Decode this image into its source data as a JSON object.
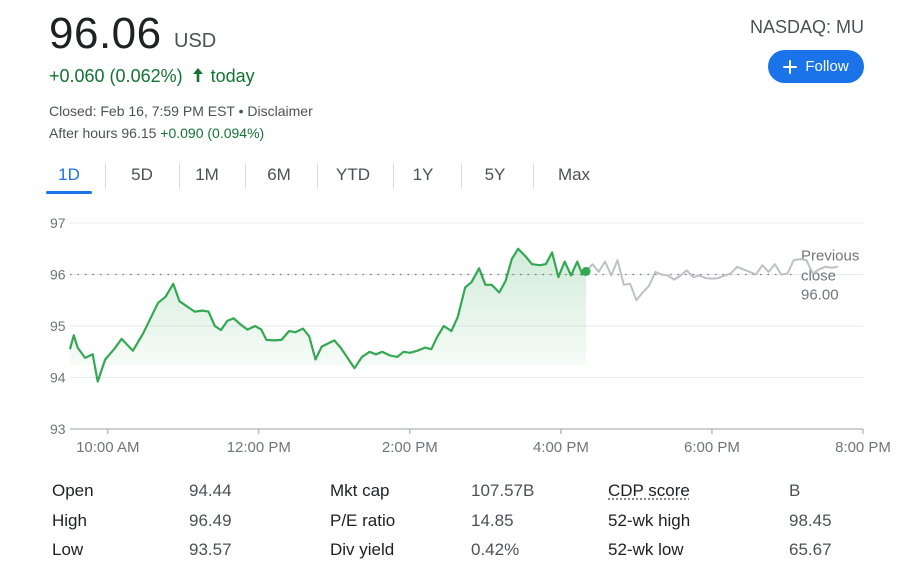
{
  "quote": {
    "price": "96.06",
    "currency": "USD",
    "change": "+0.060 (0.062%)",
    "change_period": "today",
    "closed_text": "Closed: Feb 16, 7:59 PM EST • Disclaimer",
    "after_hours_label": "After hours 96.15",
    "after_hours_change": "+0.090 (0.094%)",
    "ticker": "NASDAQ: MU",
    "follow_label": "Follow",
    "arrow_icon": "arrow-up-icon",
    "plus_icon": "plus-icon"
  },
  "tabs": [
    "1D",
    "5D",
    "1M",
    "6M",
    "YTD",
    "1Y",
    "5Y",
    "Max"
  ],
  "active_tab": "1D",
  "chart_data": {
    "type": "line",
    "ylim": [
      93,
      97
    ],
    "yticks": [
      "97",
      "96",
      "95",
      "94",
      "93"
    ],
    "xlim": [
      "9:30 AM",
      "8:00 PM"
    ],
    "xticks": [
      "10:00 AM",
      "12:00 PM",
      "2:00 PM",
      "4:00 PM",
      "6:00 PM",
      "8:00 PM"
    ],
    "previous_close": {
      "label_line1": "Previous",
      "label_line2": "close",
      "value": "96.00",
      "y": 96.0
    },
    "grid": "horizontal",
    "colors": {
      "regular": "#34a853",
      "after_hours": "#bdc1c6",
      "fill_top": "#e6f4ea",
      "line_ref": "#70757a"
    },
    "series": [
      {
        "session": "regular",
        "points": [
          [
            "9:30",
            94.55
          ],
          [
            "9:33",
            94.82
          ],
          [
            "9:36",
            94.58
          ],
          [
            "9:42",
            94.38
          ],
          [
            "9:48",
            94.45
          ],
          [
            "9:52",
            93.92
          ],
          [
            "9:58",
            94.35
          ],
          [
            "10:05",
            94.55
          ],
          [
            "10:11",
            94.75
          ],
          [
            "10:20",
            94.52
          ],
          [
            "10:28",
            94.85
          ],
          [
            "10:35",
            95.2
          ],
          [
            "10:40",
            95.45
          ],
          [
            "10:46",
            95.57
          ],
          [
            "10:52",
            95.82
          ],
          [
            "10:57",
            95.48
          ],
          [
            "11:03",
            95.38
          ],
          [
            "11:09",
            95.28
          ],
          [
            "11:15",
            95.3
          ],
          [
            "11:20",
            95.28
          ],
          [
            "11:25",
            95.0
          ],
          [
            "11:30",
            94.92
          ],
          [
            "11:35",
            95.1
          ],
          [
            "11:40",
            95.15
          ],
          [
            "11:46",
            95.02
          ],
          [
            "11:51",
            94.93
          ],
          [
            "11:57",
            95.0
          ],
          [
            "12:02",
            94.93
          ],
          [
            "12:06",
            94.73
          ],
          [
            "12:12",
            94.72
          ],
          [
            "12:18",
            94.73
          ],
          [
            "12:24",
            94.9
          ],
          [
            "12:29",
            94.88
          ],
          [
            "12:35",
            94.95
          ],
          [
            "12:40",
            94.8
          ],
          [
            "12:45",
            94.35
          ],
          [
            "12:50",
            94.6
          ],
          [
            "12:55",
            94.66
          ],
          [
            "13:00",
            94.72
          ],
          [
            "13:05",
            94.58
          ],
          [
            "13:10",
            94.4
          ],
          [
            "13:16",
            94.18
          ],
          [
            "13:22",
            94.4
          ],
          [
            "13:28",
            94.5
          ],
          [
            "13:33",
            94.45
          ],
          [
            "13:38",
            94.5
          ],
          [
            "13:44",
            94.43
          ],
          [
            "13:50",
            94.4
          ],
          [
            "13:55",
            94.5
          ],
          [
            "14:00",
            94.48
          ],
          [
            "14:06",
            94.52
          ],
          [
            "14:12",
            94.58
          ],
          [
            "14:17",
            94.55
          ],
          [
            "14:22",
            94.8
          ],
          [
            "14:27",
            95.0
          ],
          [
            "14:33",
            94.9
          ],
          [
            "14:38",
            95.17
          ],
          [
            "14:44",
            95.75
          ],
          [
            "14:49",
            95.85
          ],
          [
            "14:55",
            96.12
          ],
          [
            "15:00",
            95.8
          ],
          [
            "15:05",
            95.8
          ],
          [
            "15:11",
            95.65
          ],
          [
            "15:16",
            95.87
          ],
          [
            "15:21",
            96.3
          ],
          [
            "15:26",
            96.5
          ],
          [
            "15:32",
            96.35
          ],
          [
            "15:37",
            96.2
          ],
          [
            "15:43",
            96.18
          ],
          [
            "15:48",
            96.2
          ],
          [
            "15:53",
            96.43
          ],
          [
            "15:58",
            95.95
          ],
          [
            "16:03",
            96.25
          ],
          [
            "16:08",
            95.98
          ],
          [
            "16:13",
            96.25
          ],
          [
            "16:17",
            96.0
          ],
          [
            "16:20",
            96.06
          ]
        ]
      },
      {
        "session": "after_hours",
        "points": [
          [
            "16:20",
            96.06
          ],
          [
            "16:25",
            96.2
          ],
          [
            "16:30",
            96.05
          ],
          [
            "16:35",
            96.25
          ],
          [
            "16:40",
            95.98
          ],
          [
            "16:45",
            96.28
          ],
          [
            "16:50",
            95.8
          ],
          [
            "16:55",
            95.82
          ],
          [
            "17:00",
            95.5
          ],
          [
            "17:05",
            95.65
          ],
          [
            "17:10",
            95.78
          ],
          [
            "17:15",
            96.05
          ],
          [
            "17:20",
            96.0
          ],
          [
            "17:25",
            95.98
          ],
          [
            "17:30",
            95.9
          ],
          [
            "17:35",
            95.98
          ],
          [
            "17:40",
            96.08
          ],
          [
            "17:45",
            95.95
          ],
          [
            "17:50",
            95.98
          ],
          [
            "17:55",
            95.93
          ],
          [
            "18:00",
            95.92
          ],
          [
            "18:05",
            95.93
          ],
          [
            "18:10",
            95.98
          ],
          [
            "18:15",
            96.02
          ],
          [
            "18:20",
            96.15
          ],
          [
            "18:25",
            96.1
          ],
          [
            "18:30",
            96.05
          ],
          [
            "18:35",
            96.0
          ],
          [
            "18:40",
            96.18
          ],
          [
            "18:45",
            96.05
          ],
          [
            "18:50",
            96.2
          ],
          [
            "18:55",
            96.0
          ],
          [
            "19:00",
            96.02
          ],
          [
            "19:05",
            96.28
          ],
          [
            "19:10",
            96.3
          ],
          [
            "19:15",
            96.28
          ],
          [
            "19:20",
            96.02
          ],
          [
            "19:25",
            96.1
          ],
          [
            "19:30",
            96.15
          ],
          [
            "19:35",
            96.13
          ],
          [
            "19:40",
            96.15
          ]
        ]
      }
    ]
  },
  "stats": [
    [
      {
        "label": "Open",
        "value": "94.44"
      },
      {
        "label": "Mkt cap",
        "value": "107.57B"
      },
      {
        "label": "CDP score",
        "value": "B"
      }
    ],
    [
      {
        "label": "High",
        "value": "96.49"
      },
      {
        "label": "P/E ratio",
        "value": "14.85"
      },
      {
        "label": "52-wk high",
        "value": "98.45"
      }
    ],
    [
      {
        "label": "Low",
        "value": "93.57"
      },
      {
        "label": "Div yield",
        "value": "0.42%"
      },
      {
        "label": "52-wk low",
        "value": "65.67"
      }
    ]
  ]
}
